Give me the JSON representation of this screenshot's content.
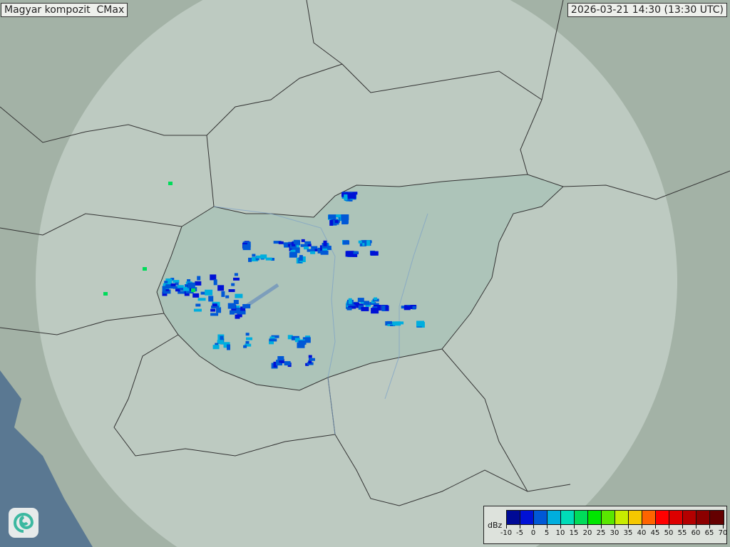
{
  "header": {
    "title": "Magyar kompozit  CMax",
    "timestamp": "2026-03-21 14:30 (13:30 UTC)"
  },
  "legend": {
    "unit": "dBz",
    "ticks": [
      "-10",
      "-5",
      "0",
      "5",
      "10",
      "15",
      "20",
      "25",
      "30",
      "35",
      "40",
      "45",
      "50",
      "55",
      "60",
      "65",
      "70"
    ],
    "colors": [
      "#000a96",
      "#0011d6",
      "#0058d6",
      "#00aede",
      "#00dcb8",
      "#00dc5a",
      "#00e600",
      "#5ae600",
      "#c8ec00",
      "#f5c800",
      "#ff6400",
      "#ff0000",
      "#dc0000",
      "#b40000",
      "#8c0000",
      "#640000"
    ]
  },
  "map": {
    "land_color": "#a3b2a6",
    "coverage_color": "#c6d2ca",
    "hungary_color": "#a9c2b6",
    "sea_color": "#5a7892",
    "logo": "omsz-swirl-icon"
  }
}
